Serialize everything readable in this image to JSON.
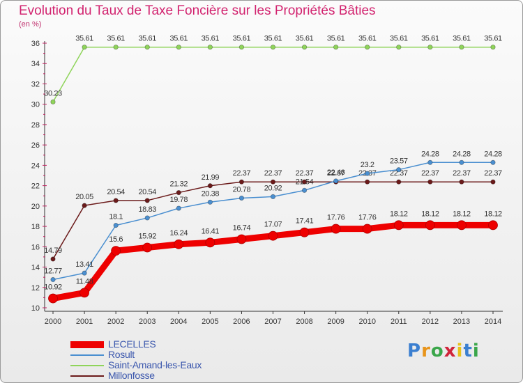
{
  "header": {
    "title": "Evolution du Taux de Taxe Foncière sur les Propriétés Bâties",
    "unit": "(en %)"
  },
  "logo": {
    "text": "Proxiti",
    "letter_colors": [
      "#3b7fd0",
      "#e8941a",
      "#3aa64a",
      "#d0243a",
      "#e8c21a",
      "#3b7fd0",
      "#3aa64a"
    ]
  },
  "chart_data": {
    "type": "line",
    "title": "Evolution du Taux de Taxe Foncière sur les Propriétés Bâties",
    "ylabel": "(en %)",
    "xlabel": "",
    "ylim": [
      10,
      36
    ],
    "yticks": [
      10,
      12,
      14,
      16,
      18,
      20,
      22,
      24,
      26,
      28,
      30,
      32,
      34,
      36
    ],
    "grid": false,
    "legend_position": "bottom-left",
    "x": [
      "2000",
      "2001",
      "2002",
      "2003",
      "2004",
      "2005",
      "2006",
      "2007",
      "2008",
      "2009",
      "2010",
      "2011",
      "2012",
      "2013",
      "2014"
    ],
    "series": [
      {
        "name": "Millonfosse",
        "color": "#6b1a1a",
        "values": [
          14.79,
          20.05,
          20.54,
          20.54,
          21.32,
          21.99,
          22.37,
          22.37,
          22.37,
          22.37,
          22.37,
          22.37,
          22.37,
          22.37,
          22.37
        ],
        "labels": [
          "14.79",
          "20.05",
          "20.54",
          "20.54",
          "21.32",
          "21.99",
          "22.37",
          "22.37",
          "22.37",
          "22.37",
          "22.37",
          "22.37",
          "22.37",
          "22.37",
          "22.37"
        ]
      },
      {
        "name": "Saint-Amand-les-Eaux",
        "color": "#8fd45a",
        "values": [
          30.23,
          35.61,
          35.61,
          35.61,
          35.61,
          35.61,
          35.61,
          35.61,
          35.61,
          35.61,
          35.61,
          35.61,
          35.61,
          35.61,
          35.61
        ],
        "labels": [
          "30.23",
          "35.61",
          "35.61",
          "35.61",
          "35.61",
          "35.61",
          "35.61",
          "35.61",
          "35.61",
          "35.61",
          "35.61",
          "35.61",
          "35.61",
          "35.61",
          "35.61"
        ]
      },
      {
        "name": "Rosult",
        "color": "#4a8fd0",
        "values": [
          12.77,
          13.41,
          18.1,
          18.83,
          19.78,
          20.38,
          20.78,
          20.92,
          21.54,
          22.46,
          23.2,
          23.57,
          24.28,
          24.28,
          24.28
        ],
        "labels": [
          "12.77",
          "13.41",
          "18.1",
          "18.83",
          "19.78",
          "20.38",
          "20.78",
          "20.92",
          "21.54",
          "22.46",
          "23.2",
          "23.57",
          "24.28",
          "24.28",
          "24.28"
        ]
      },
      {
        "name": "LECELLES",
        "color": "#ee0000",
        "values": [
          10.92,
          11.48,
          15.6,
          15.92,
          16.24,
          16.41,
          16.74,
          17.07,
          17.41,
          17.76,
          17.76,
          18.12,
          18.12,
          18.12,
          18.12
        ],
        "labels": [
          "10.92",
          "11.48",
          "15.6",
          "15.92",
          "16.24",
          "16.41",
          "16.74",
          "17.07",
          "17.41",
          "17.76",
          "17.76",
          "18.12",
          "18.12",
          "18.12",
          "18.12"
        ]
      }
    ],
    "legend": [
      "LECELLES",
      "Rosult",
      "Saint-Amand-les-Eaux",
      "Millonfosse"
    ]
  }
}
